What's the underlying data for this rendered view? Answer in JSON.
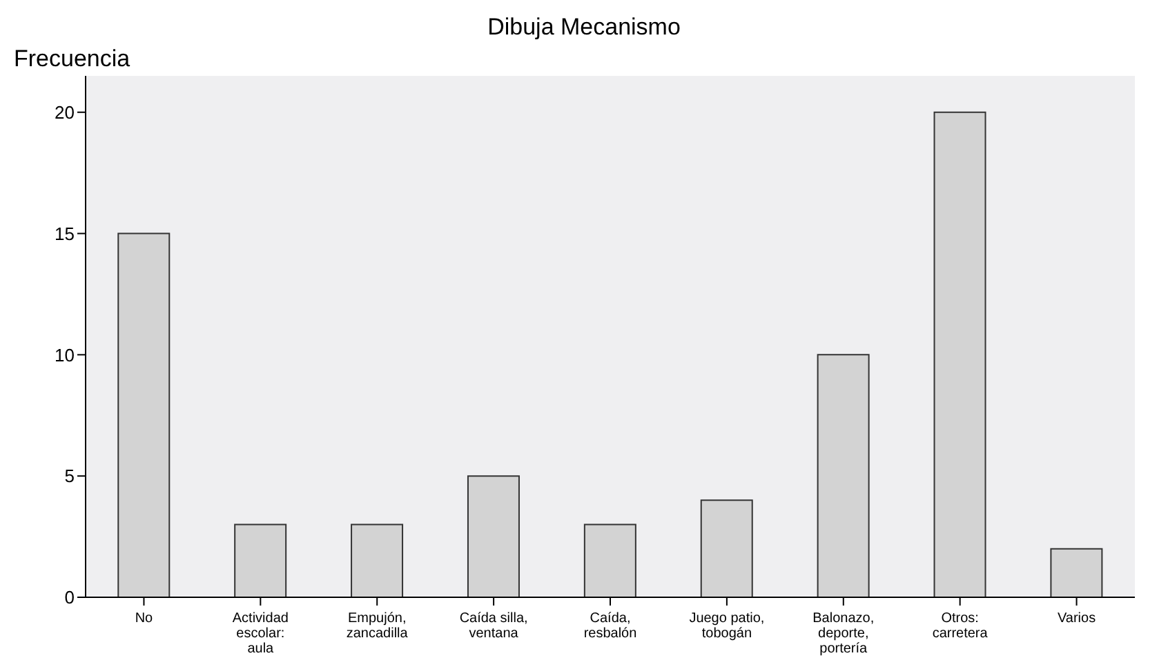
{
  "chart_data": {
    "type": "bar",
    "title": "Dibuja Mecanismo",
    "ylabel": "Frecuencia",
    "categories": [
      "No",
      "Actividad escolar: aula",
      "Empujón, zancadilla",
      "Caída silla, ventana",
      "Caída, resbalón",
      "Juego patio, tobogán",
      "Balonazo, deporte, portería",
      "Otros: carretera",
      "Varios"
    ],
    "values": [
      15,
      3,
      3,
      5,
      3,
      4,
      10,
      20,
      2
    ],
    "color": "#d3d3d3",
    "ylim": [
      0,
      21.5
    ],
    "yticks": [
      0,
      5,
      10,
      15,
      20
    ]
  }
}
